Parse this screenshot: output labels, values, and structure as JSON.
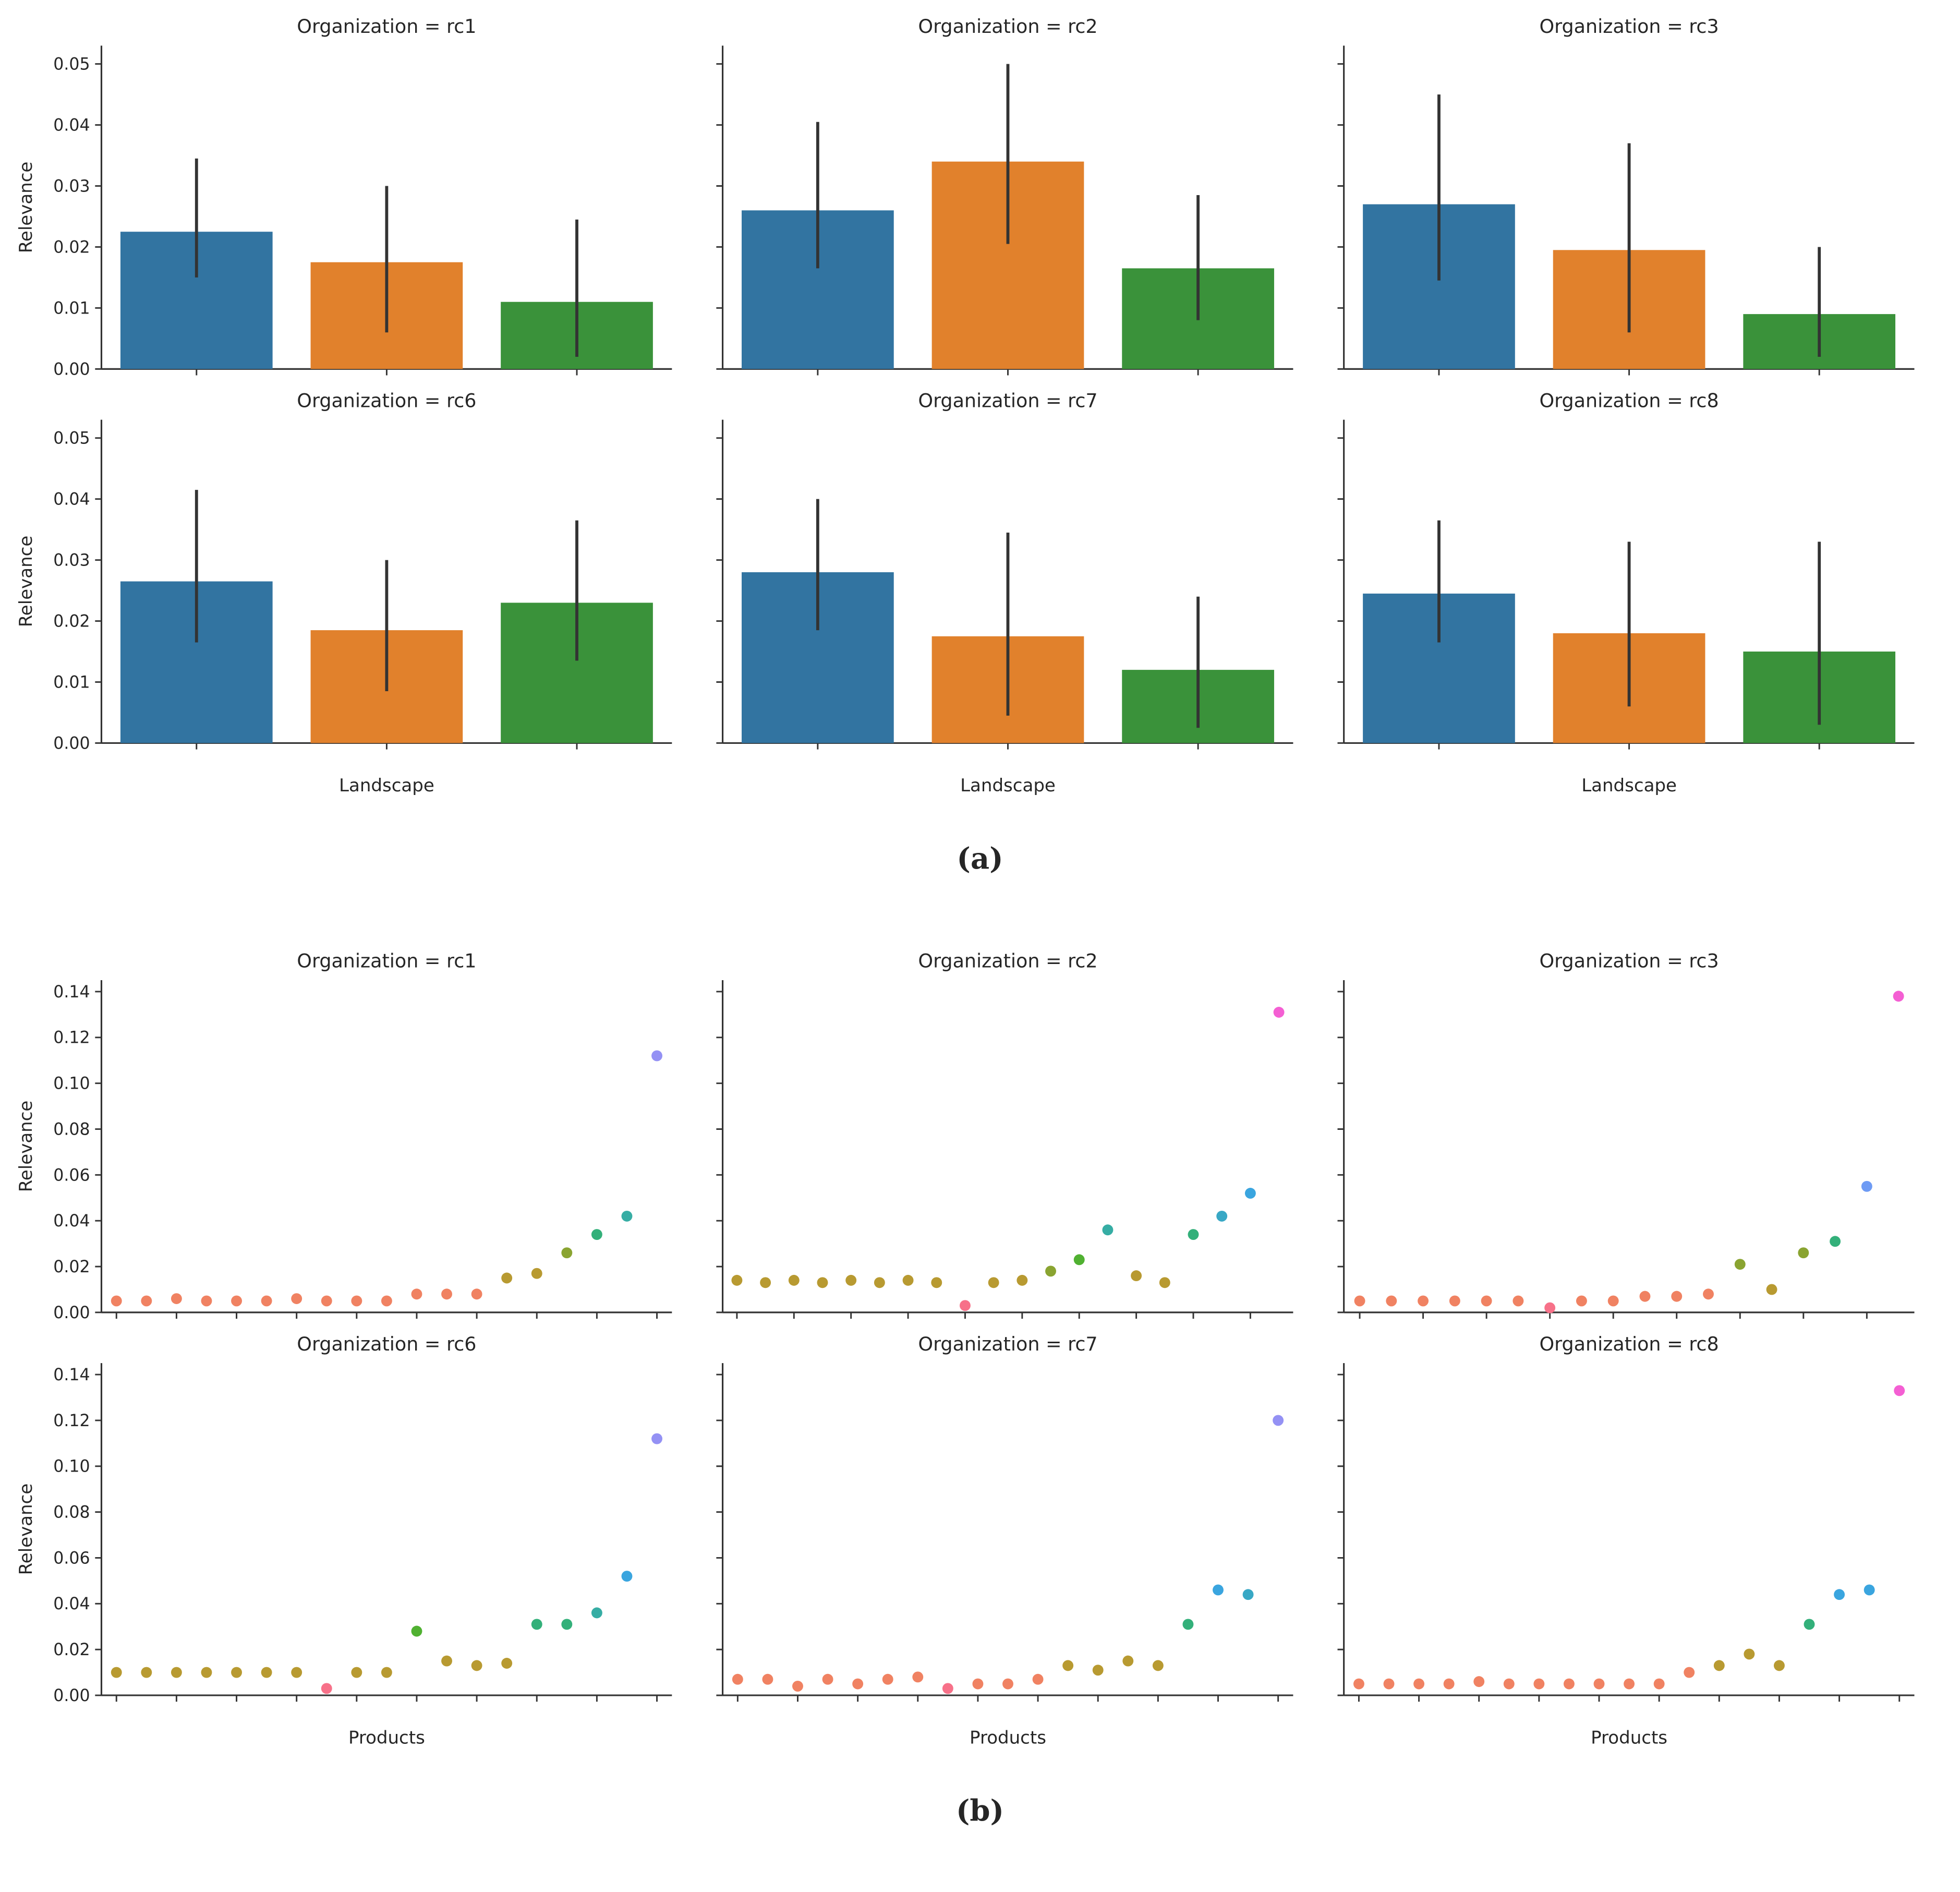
{
  "figure": {
    "panel_a_label": "(a)",
    "panel_b_label": "(b)"
  },
  "chart_data": [
    {
      "type": "bar",
      "panel": "a",
      "title_prefix": "Organization = ",
      "ylabel": "Relevance",
      "xlabel": "Landscape",
      "ylim": [
        0,
        0.053
      ],
      "yticks": [
        0.0,
        0.01,
        0.02,
        0.03,
        0.04,
        0.05
      ],
      "bar_colors": [
        "#3274a1",
        "#e1812c",
        "#3a923a"
      ],
      "error_color": "#333333",
      "legend": "none",
      "grid": "off",
      "facets": [
        {
          "organization": "rc1",
          "values": [
            0.0225,
            0.0175,
            0.011
          ],
          "errors": [
            [
              0.015,
              0.0345
            ],
            [
              0.006,
              0.03
            ],
            [
              0.002,
              0.0245
            ]
          ]
        },
        {
          "organization": "rc2",
          "values": [
            0.026,
            0.034,
            0.0165
          ],
          "errors": [
            [
              0.0165,
              0.0405
            ],
            [
              0.0205,
              0.05
            ],
            [
              0.008,
              0.0285
            ]
          ]
        },
        {
          "organization": "rc3",
          "values": [
            0.027,
            0.0195,
            0.009
          ],
          "errors": [
            [
              0.0145,
              0.045
            ],
            [
              0.006,
              0.037
            ],
            [
              0.002,
              0.02
            ]
          ]
        },
        {
          "organization": "rc6",
          "values": [
            0.0265,
            0.0185,
            0.023
          ],
          "errors": [
            [
              0.0165,
              0.0415
            ],
            [
              0.0085,
              0.03
            ],
            [
              0.0135,
              0.0365
            ]
          ]
        },
        {
          "organization": "rc7",
          "values": [
            0.028,
            0.0175,
            0.012
          ],
          "errors": [
            [
              0.0185,
              0.04
            ],
            [
              0.0045,
              0.0345
            ],
            [
              0.0025,
              0.024
            ]
          ]
        },
        {
          "organization": "rc8",
          "values": [
            0.0245,
            0.018,
            0.015
          ],
          "errors": [
            [
              0.0165,
              0.0365
            ],
            [
              0.006,
              0.033
            ],
            [
              0.003,
              0.033
            ]
          ]
        }
      ]
    },
    {
      "type": "scatter",
      "panel": "b",
      "title_prefix": "Organization = ",
      "ylabel": "Relevance",
      "xlabel": "Products",
      "ylim": [
        0,
        0.145
      ],
      "yticks": [
        0.0,
        0.02,
        0.04,
        0.06,
        0.08,
        0.1,
        0.12,
        0.14
      ],
      "legend": "none",
      "grid": "off",
      "facets": [
        {
          "organization": "rc1",
          "points": [
            {
              "v": 0.005,
              "c": "#f08262"
            },
            {
              "v": 0.005,
              "c": "#f08262"
            },
            {
              "v": 0.006,
              "c": "#f08262"
            },
            {
              "v": 0.005,
              "c": "#f08262"
            },
            {
              "v": 0.005,
              "c": "#f08262"
            },
            {
              "v": 0.005,
              "c": "#f08262"
            },
            {
              "v": 0.006,
              "c": "#f08262"
            },
            {
              "v": 0.005,
              "c": "#f08262"
            },
            {
              "v": 0.005,
              "c": "#f08262"
            },
            {
              "v": 0.005,
              "c": "#f08262"
            },
            {
              "v": 0.008,
              "c": "#f08262"
            },
            {
              "v": 0.008,
              "c": "#f08262"
            },
            {
              "v": 0.008,
              "c": "#f08262"
            },
            {
              "v": 0.015,
              "c": "#b89a31"
            },
            {
              "v": 0.017,
              "c": "#b89a31"
            },
            {
              "v": 0.026,
              "c": "#8aa431"
            },
            {
              "v": 0.034,
              "c": "#33b07a"
            },
            {
              "v": 0.042,
              "c": "#36ada4"
            },
            {
              "v": 0.112,
              "c": "#9491f4"
            }
          ]
        },
        {
          "organization": "rc2",
          "points": [
            {
              "v": 0.014,
              "c": "#b89a31"
            },
            {
              "v": 0.013,
              "c": "#b89a31"
            },
            {
              "v": 0.014,
              "c": "#b89a31"
            },
            {
              "v": 0.013,
              "c": "#b89a31"
            },
            {
              "v": 0.014,
              "c": "#b89a31"
            },
            {
              "v": 0.013,
              "c": "#b89a31"
            },
            {
              "v": 0.014,
              "c": "#b89a31"
            },
            {
              "v": 0.013,
              "c": "#b89a31"
            },
            {
              "v": 0.003,
              "c": "#f77189"
            },
            {
              "v": 0.013,
              "c": "#b89a31"
            },
            {
              "v": 0.014,
              "c": "#b89a31"
            },
            {
              "v": 0.018,
              "c": "#8aa431"
            },
            {
              "v": 0.023,
              "c": "#50b131"
            },
            {
              "v": 0.036,
              "c": "#36ada4"
            },
            {
              "v": 0.016,
              "c": "#b89a31"
            },
            {
              "v": 0.013,
              "c": "#b89a31"
            },
            {
              "v": 0.034,
              "c": "#33b07a"
            },
            {
              "v": 0.042,
              "c": "#38a8c5"
            },
            {
              "v": 0.052,
              "c": "#3aa5df"
            }
          ],
          "outlier": {
            "v": 0.131,
            "c": "#f45fd3"
          }
        },
        {
          "organization": "rc3",
          "points": [
            {
              "v": 0.005,
              "c": "#f08262"
            },
            {
              "v": 0.005,
              "c": "#f08262"
            },
            {
              "v": 0.005,
              "c": "#f08262"
            },
            {
              "v": 0.005,
              "c": "#f08262"
            },
            {
              "v": 0.005,
              "c": "#f08262"
            },
            {
              "v": 0.005,
              "c": "#f08262"
            },
            {
              "v": 0.002,
              "c": "#f77189"
            },
            {
              "v": 0.005,
              "c": "#f08262"
            },
            {
              "v": 0.005,
              "c": "#f08262"
            },
            {
              "v": 0.007,
              "c": "#f08262"
            },
            {
              "v": 0.007,
              "c": "#f08262"
            },
            {
              "v": 0.008,
              "c": "#f08262"
            },
            {
              "v": 0.021,
              "c": "#8aa431"
            },
            {
              "v": 0.01,
              "c": "#b89a31"
            },
            {
              "v": 0.026,
              "c": "#8aa431"
            },
            {
              "v": 0.031,
              "c": "#33b07a"
            },
            {
              "v": 0.055,
              "c": "#6e9bf4"
            },
            {
              "v": 0.138,
              "c": "#f45fd3"
            }
          ]
        },
        {
          "organization": "rc6",
          "points": [
            {
              "v": 0.01,
              "c": "#b89a31"
            },
            {
              "v": 0.01,
              "c": "#b89a31"
            },
            {
              "v": 0.01,
              "c": "#b89a31"
            },
            {
              "v": 0.01,
              "c": "#b89a31"
            },
            {
              "v": 0.01,
              "c": "#b89a31"
            },
            {
              "v": 0.01,
              "c": "#b89a31"
            },
            {
              "v": 0.01,
              "c": "#b89a31"
            },
            {
              "v": 0.003,
              "c": "#f77189"
            },
            {
              "v": 0.01,
              "c": "#b89a31"
            },
            {
              "v": 0.01,
              "c": "#b89a31"
            },
            {
              "v": 0.028,
              "c": "#50b131"
            },
            {
              "v": 0.015,
              "c": "#b89a31"
            },
            {
              "v": 0.013,
              "c": "#b89a31"
            },
            {
              "v": 0.014,
              "c": "#b89a31"
            },
            {
              "v": 0.031,
              "c": "#33b07a"
            },
            {
              "v": 0.031,
              "c": "#33b07a"
            },
            {
              "v": 0.036,
              "c": "#36ada4"
            },
            {
              "v": 0.052,
              "c": "#3aa5df"
            },
            {
              "v": 0.112,
              "c": "#9491f4"
            }
          ]
        },
        {
          "organization": "rc7",
          "points": [
            {
              "v": 0.007,
              "c": "#f08262"
            },
            {
              "v": 0.007,
              "c": "#f08262"
            },
            {
              "v": 0.004,
              "c": "#f08262"
            },
            {
              "v": 0.007,
              "c": "#f08262"
            },
            {
              "v": 0.005,
              "c": "#f08262"
            },
            {
              "v": 0.007,
              "c": "#f08262"
            },
            {
              "v": 0.008,
              "c": "#f08262"
            },
            {
              "v": 0.003,
              "c": "#f77189"
            },
            {
              "v": 0.005,
              "c": "#f08262"
            },
            {
              "v": 0.005,
              "c": "#f08262"
            },
            {
              "v": 0.007,
              "c": "#f08262"
            },
            {
              "v": 0.013,
              "c": "#b89a31"
            },
            {
              "v": 0.011,
              "c": "#b89a31"
            },
            {
              "v": 0.015,
              "c": "#b89a31"
            },
            {
              "v": 0.013,
              "c": "#b89a31"
            },
            {
              "v": 0.031,
              "c": "#33b07a"
            },
            {
              "v": 0.046,
              "c": "#3aa5df"
            },
            {
              "v": 0.044,
              "c": "#38a8c5"
            },
            {
              "v": 0.12,
              "c": "#9491f4"
            }
          ]
        },
        {
          "organization": "rc8",
          "points": [
            {
              "v": 0.005,
              "c": "#f08262"
            },
            {
              "v": 0.005,
              "c": "#f08262"
            },
            {
              "v": 0.005,
              "c": "#f08262"
            },
            {
              "v": 0.005,
              "c": "#f08262"
            },
            {
              "v": 0.006,
              "c": "#f08262"
            },
            {
              "v": 0.005,
              "c": "#f08262"
            },
            {
              "v": 0.005,
              "c": "#f08262"
            },
            {
              "v": 0.005,
              "c": "#f08262"
            },
            {
              "v": 0.005,
              "c": "#f08262"
            },
            {
              "v": 0.005,
              "c": "#f08262"
            },
            {
              "v": 0.005,
              "c": "#f08262"
            },
            {
              "v": 0.01,
              "c": "#f08262"
            },
            {
              "v": 0.013,
              "c": "#b89a31"
            },
            {
              "v": 0.018,
              "c": "#b89a31"
            },
            {
              "v": 0.013,
              "c": "#b89a31"
            },
            {
              "v": 0.031,
              "c": "#33b07a"
            },
            {
              "v": 0.044,
              "c": "#3aa5df"
            },
            {
              "v": 0.046,
              "c": "#3aa5df"
            },
            {
              "v": 0.133,
              "c": "#f45fd3"
            }
          ]
        }
      ]
    }
  ]
}
